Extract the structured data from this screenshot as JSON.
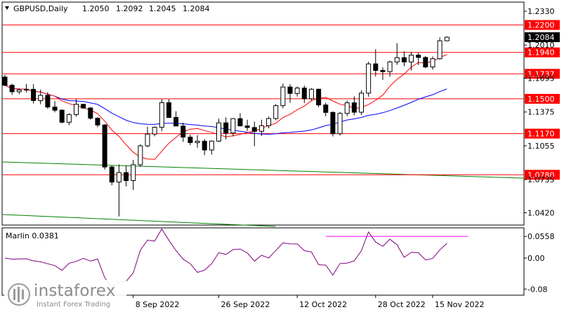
{
  "header": {
    "symbol": "GBPUSD,Daily",
    "open": "1.2050",
    "high": "1.2092",
    "low": "1.2045",
    "close": "1.2084"
  },
  "price_axis": {
    "ticks": [
      "1.2330",
      "1.2010",
      "1.1695",
      "1.1375",
      "1.1055",
      "1.0735",
      "1.0420"
    ],
    "current_price": "1.2084"
  },
  "levels": [
    {
      "label": "1.2200",
      "value": 1.22
    },
    {
      "label": "1.1940",
      "value": 1.194
    },
    {
      "label": "1.1737",
      "value": 1.1737
    },
    {
      "label": "1.1500",
      "value": 1.15
    },
    {
      "label": "1.1170",
      "value": 1.117
    },
    {
      "label": "1.0780",
      "value": 1.078
    }
  ],
  "date_axis": {
    "labels": [
      "8 Sep 2022",
      "26 Sep 2022",
      "12 Oct 2022",
      "28 Oct 2022",
      "15 Nov 2022"
    ]
  },
  "indicator": {
    "label": "Marlin 0.0381",
    "ticks": [
      "0.0558",
      "0.00",
      "-0.08"
    ]
  },
  "watermark": {
    "brand": "instaforex",
    "tagline": "Instant Forex Trading"
  },
  "colors": {
    "background": "#ffffff",
    "candle_outline": "#000000",
    "level_line": "#ff0000",
    "level_label_bg": "#ff0000",
    "red_ma": "#ff0000",
    "blue_ma": "#0000ff",
    "green_line": "#008000",
    "marlin_line": "#800080",
    "marlin_divergence": "#ff00ff"
  },
  "chart_data": {
    "type": "candlestick",
    "symbol": "GBPUSD",
    "timeframe": "Daily",
    "ohlc": [
      [
        1.1706,
        1.1727,
        1.1619,
        1.1629
      ],
      [
        1.1629,
        1.1643,
        1.1537,
        1.1567
      ],
      [
        1.1567,
        1.1598,
        1.1545,
        1.1584
      ],
      [
        1.1584,
        1.164,
        1.156,
        1.159
      ],
      [
        1.159,
        1.1638,
        1.1455,
        1.1483
      ],
      [
        1.1483,
        1.1587,
        1.1449,
        1.1533
      ],
      [
        1.1533,
        1.1563,
        1.1405,
        1.1422
      ],
      [
        1.1422,
        1.1478,
        1.1372,
        1.1392
      ],
      [
        1.1392,
        1.1402,
        1.1268,
        1.1278
      ],
      [
        1.1278,
        1.1364,
        1.125,
        1.1351
      ],
      [
        1.1351,
        1.1496,
        1.133,
        1.1448
      ],
      [
        1.1448,
        1.1453,
        1.1406,
        1.1413
      ],
      [
        1.1413,
        1.1422,
        1.1302,
        1.1316
      ],
      [
        1.1316,
        1.1326,
        1.123,
        1.1252
      ],
      [
        1.1252,
        1.1261,
        1.083,
        1.0854
      ],
      [
        1.0854,
        1.0869,
        1.068,
        1.0711
      ],
      [
        1.0711,
        1.0878,
        1.0385,
        1.0801
      ],
      [
        1.0801,
        1.0867,
        1.067,
        1.0725
      ],
      [
        1.0725,
        1.0921,
        1.0635,
        1.0875
      ],
      [
        1.0875,
        1.107,
        1.0856,
        1.1054
      ],
      [
        1.1054,
        1.1235,
        1.104,
        1.1166
      ],
      [
        1.1166,
        1.1238,
        1.1145,
        1.123
      ],
      [
        1.123,
        1.1496,
        1.1193,
        1.1463
      ],
      [
        1.1463,
        1.1495,
        1.1319,
        1.1323
      ],
      [
        1.1323,
        1.1382,
        1.1242,
        1.1242
      ],
      [
        1.1242,
        1.1274,
        1.1092,
        1.1137
      ],
      [
        1.1137,
        1.1161,
        1.1061,
        1.1085
      ],
      [
        1.1085,
        1.1155,
        1.1036,
        1.1098
      ],
      [
        1.1098,
        1.112,
        1.0966,
        1.1015
      ],
      [
        1.1015,
        1.1105,
        1.0972,
        1.1099
      ],
      [
        1.1099,
        1.1312,
        1.109,
        1.1272
      ],
      [
        1.1272,
        1.1324,
        1.1116,
        1.1176
      ],
      [
        1.1176,
        1.1317,
        1.1145,
        1.1312
      ],
      [
        1.1312,
        1.1363,
        1.124,
        1.1243
      ],
      [
        1.1243,
        1.1302,
        1.1196,
        1.1228
      ],
      [
        1.1228,
        1.1285,
        1.105,
        1.1192
      ],
      [
        1.1192,
        1.1302,
        1.1148,
        1.1246
      ],
      [
        1.1246,
        1.1332,
        1.1221,
        1.1313
      ],
      [
        1.1313,
        1.1451,
        1.1297,
        1.1435
      ],
      [
        1.1435,
        1.1645,
        1.141,
        1.1612
      ],
      [
        1.1612,
        1.1638,
        1.1462,
        1.1551
      ],
      [
        1.1551,
        1.1617,
        1.1521,
        1.1602
      ],
      [
        1.1602,
        1.1625,
        1.146,
        1.1501
      ],
      [
        1.1501,
        1.16,
        1.1485,
        1.1591
      ],
      [
        1.1591,
        1.1596,
        1.1422,
        1.1442
      ],
      [
        1.1442,
        1.1464,
        1.1335,
        1.1371
      ],
      [
        1.1371,
        1.1382,
        1.1143,
        1.1169
      ],
      [
        1.1169,
        1.1376,
        1.1152,
        1.1362
      ],
      [
        1.1362,
        1.1484,
        1.1335,
        1.1462
      ],
      [
        1.1462,
        1.1524,
        1.1344,
        1.1373
      ],
      [
        1.1373,
        1.158,
        1.1347,
        1.1554
      ],
      [
        1.1554,
        1.1851,
        1.152,
        1.1831
      ],
      [
        1.1831,
        1.1969,
        1.1712,
        1.1769
      ],
      [
        1.1769,
        1.18,
        1.1679,
        1.1758
      ],
      [
        1.1758,
        1.1862,
        1.171,
        1.185
      ],
      [
        1.185,
        1.2028,
        1.1822,
        1.189
      ],
      [
        1.189,
        1.195,
        1.181,
        1.1849
      ],
      [
        1.1849,
        1.1945,
        1.1768,
        1.1914
      ],
      [
        1.1914,
        1.1937,
        1.182,
        1.1892
      ],
      [
        1.1892,
        1.1905,
        1.179,
        1.1802
      ],
      [
        1.1802,
        1.1902,
        1.1775,
        1.188
      ],
      [
        1.188,
        1.2082,
        1.1871,
        1.205
      ],
      [
        1.205,
        1.2092,
        1.2045,
        1.2084
      ]
    ],
    "price_levels": [
      1.22,
      1.194,
      1.1737,
      1.15,
      1.117,
      1.078
    ],
    "yrange": [
      1.031,
      1.241
    ],
    "y_ticks": [
      1.233,
      1.201,
      1.1695,
      1.1375,
      1.1055,
      1.0735,
      1.042
    ],
    "x_labels": [
      "8 Sep 2022",
      "26 Sep 2022",
      "12 Oct 2022",
      "28 Oct 2022",
      "15 Nov 2022"
    ],
    "red_ma_visible": [
      1.178,
      1.1745,
      1.1705,
      1.167,
      1.163,
      1.1592,
      1.156,
      1.1525,
      1.149,
      1.1455,
      1.142,
      1.138,
      1.1345,
      1.1305,
      1.127,
      1.124,
      1.121,
      1.1185,
      1.116,
      1.1135
    ],
    "indicator": {
      "name": "Marlin",
      "value": 0.0381,
      "y_ticks": [
        0.0558,
        0.0,
        -0.08
      ],
      "yrange": [
        -0.094,
        0.076
      ]
    }
  }
}
